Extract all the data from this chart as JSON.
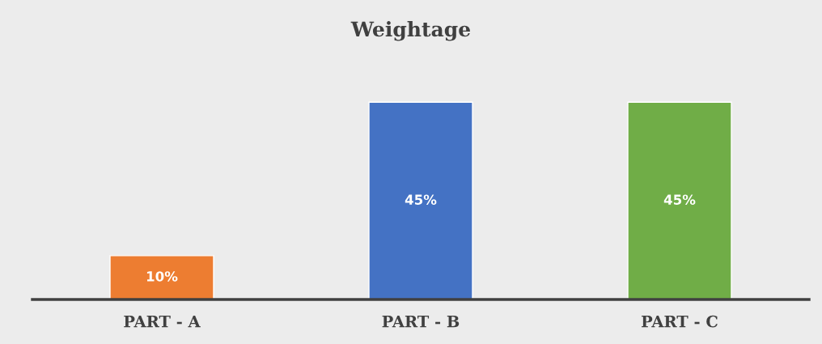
{
  "chart_data": {
    "type": "bar",
    "title": "Weightage",
    "categories": [
      "PART - A",
      "PART - B",
      "PART - C"
    ],
    "values": [
      10,
      45,
      45
    ],
    "colors": [
      "#ed7d31",
      "#4472c4",
      "#70ad47"
    ],
    "value_labels": [
      "10%",
      "45%",
      "45%"
    ],
    "data_labels": false
  }
}
